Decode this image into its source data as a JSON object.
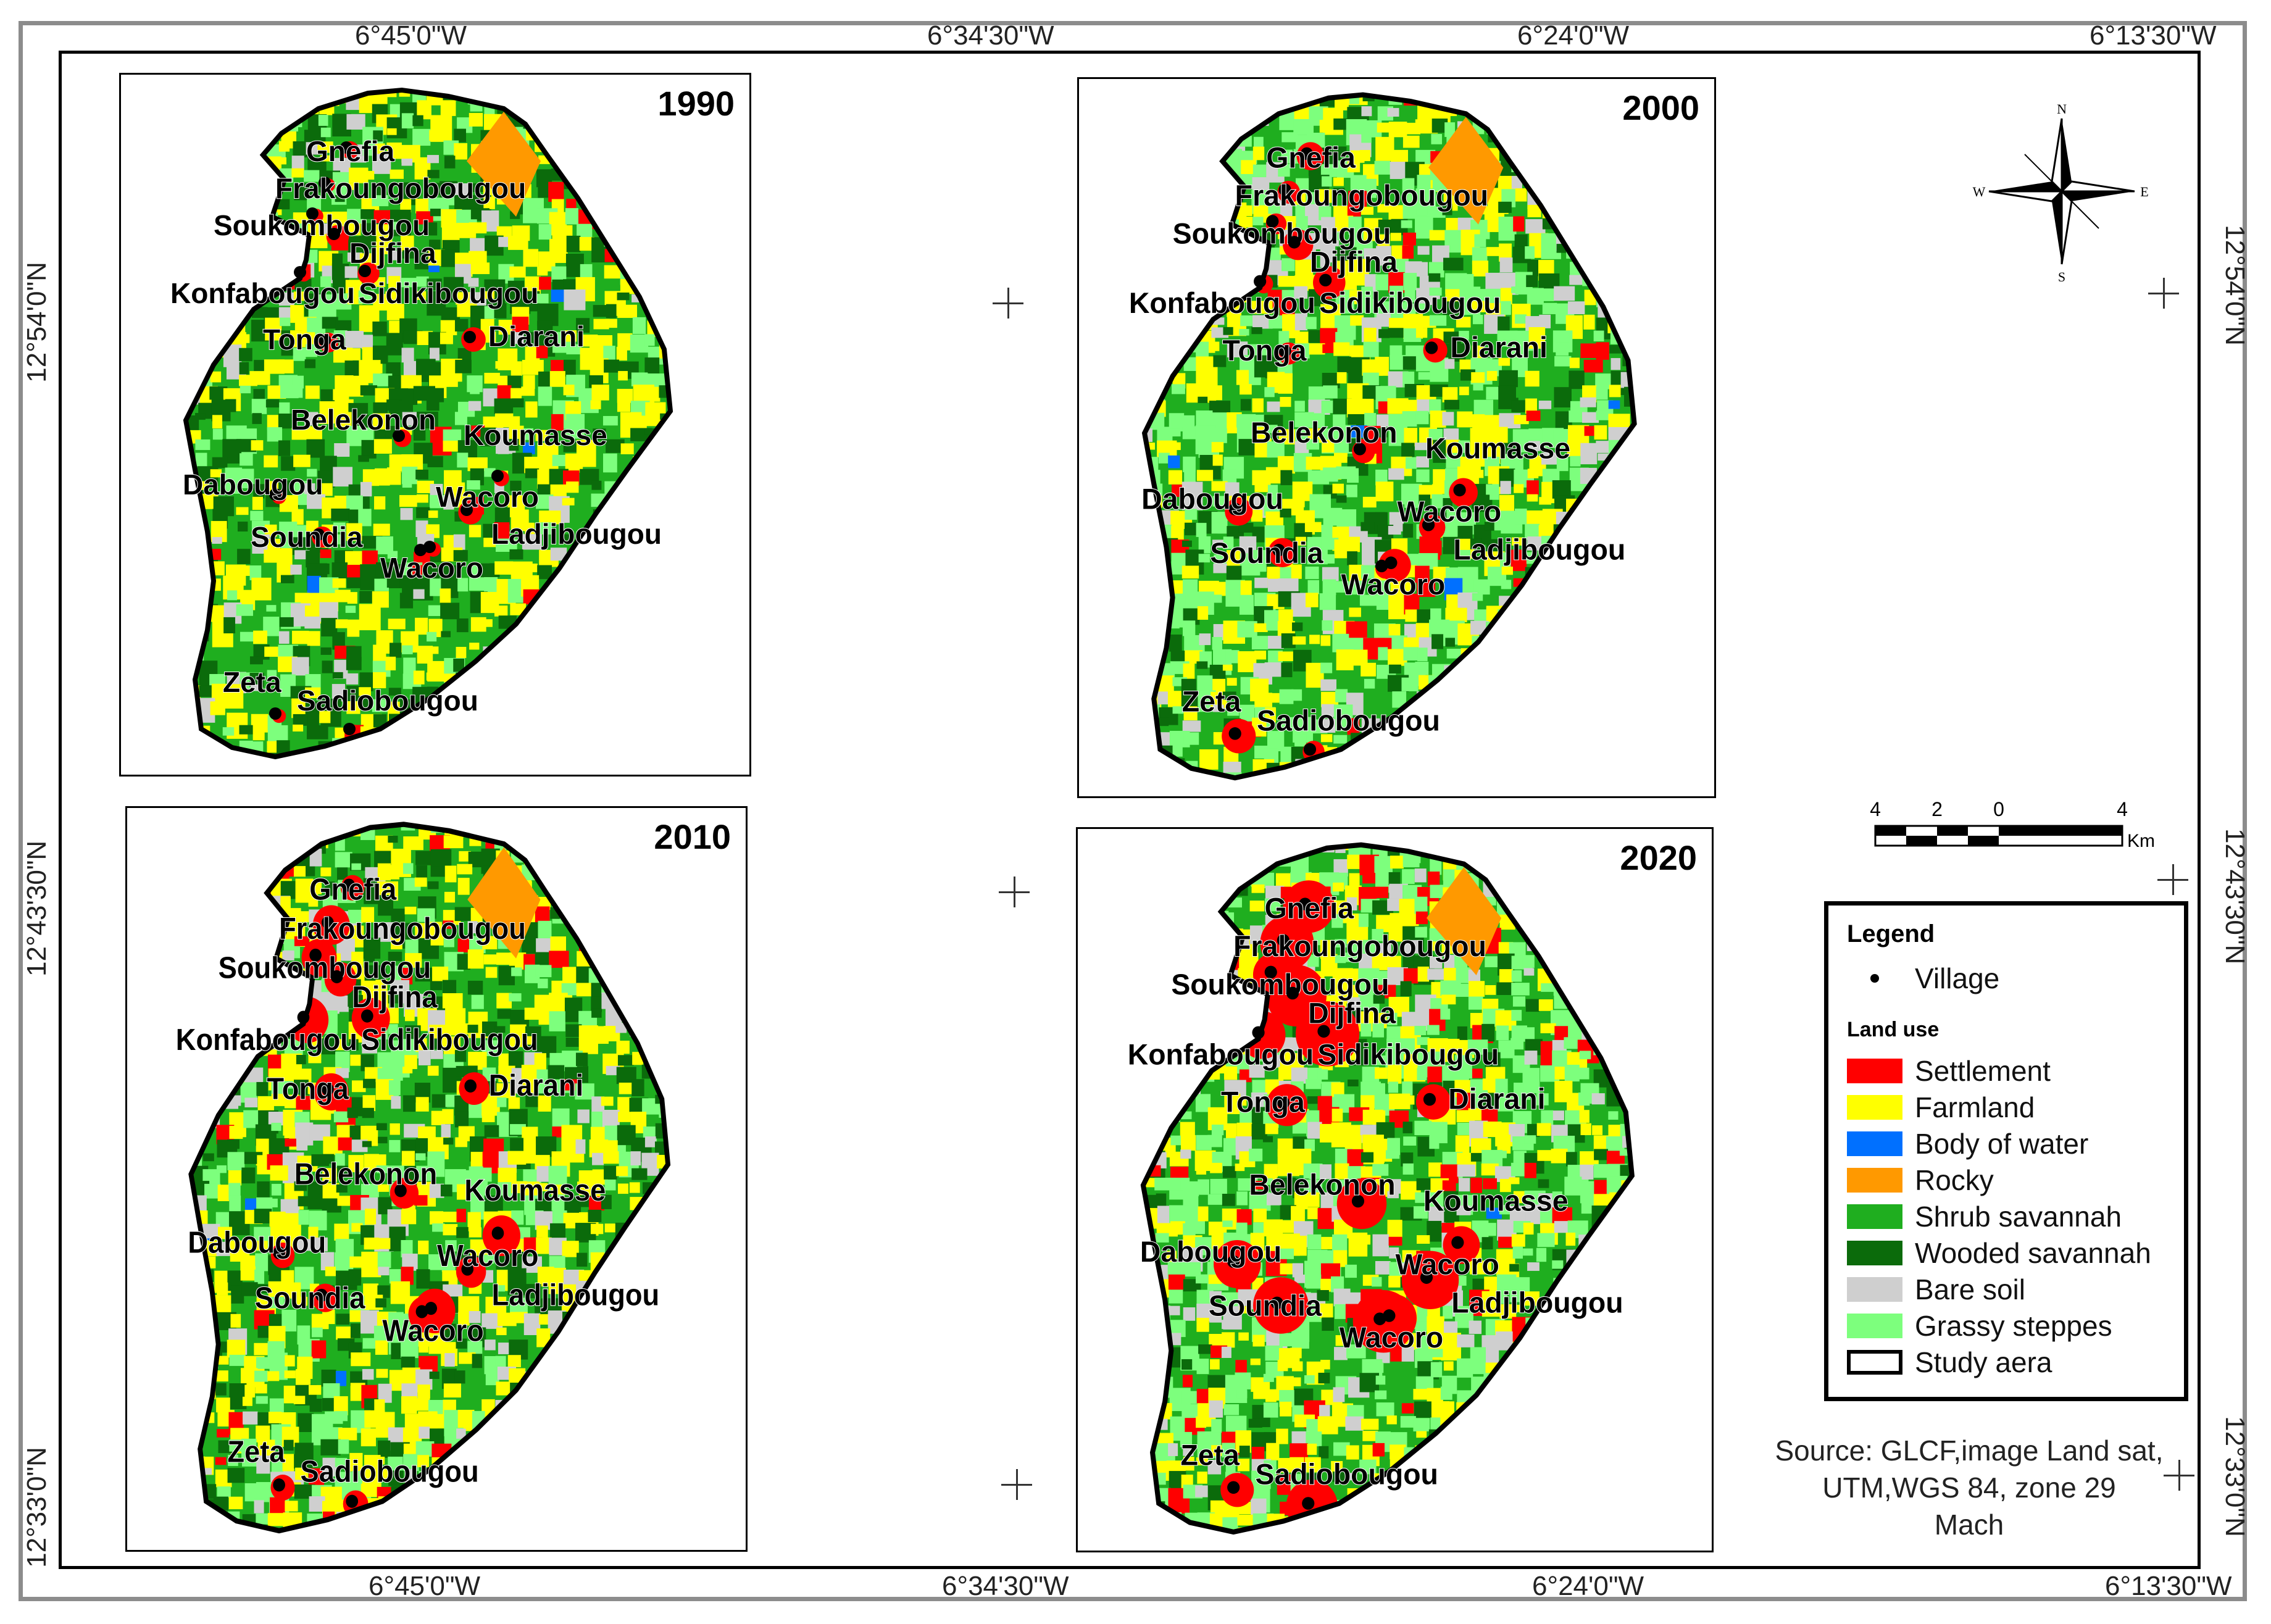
{
  "frame_labels": {
    "top": [
      "6°45'0\"W",
      "6°34'30\"W",
      "6°24'0\"W",
      "6°13'30\"W"
    ],
    "bottom": [
      "6°45'0\"W",
      "6°34'30\"W",
      "6°24'0\"W",
      "6°13'30\"W"
    ],
    "left": [
      "12°54'0\"N",
      "12°43'30\"N",
      "12°33'0\"N"
    ],
    "right": [
      "12°54'0\"N",
      "12°43'30\"N",
      "12°33'0\"N"
    ]
  },
  "panels": [
    {
      "year": "1990"
    },
    {
      "year": "2000"
    },
    {
      "year": "2010"
    },
    {
      "year": "2020"
    }
  ],
  "villages": [
    "Gnefia",
    "Frakoungobougou",
    "Soukombougou",
    "Dijfina",
    "Konfabougou",
    "Sidikibougou",
    "Tonga",
    "Diarani",
    "Belekonon",
    "Koumasse",
    "Dabougou",
    "Wacoro",
    "Soundia",
    "Wacoro",
    "Ladjibougou",
    "Zeta",
    "Sadiobougou"
  ],
  "north_arrow": {
    "n": "N",
    "s": "S",
    "e": "E",
    "w": "W"
  },
  "scale": {
    "ticks": [
      "4",
      "2",
      "0",
      "4"
    ],
    "unit": "Km"
  },
  "legend": {
    "title": "Legend",
    "village_label": "Village",
    "section": "Land use",
    "items": [
      {
        "label": "Settlement",
        "color": "#ff0000"
      },
      {
        "label": "Farmland",
        "color": "#ffff00"
      },
      {
        "label": "Body of water",
        "color": "#0070ff"
      },
      {
        "label": "Rocky",
        "color": "#ff9900"
      },
      {
        "label": "Shrub savannah",
        "color": "#1fae1f"
      },
      {
        "label": "Wooded savannah",
        "color": "#0b6b0b"
      },
      {
        "label": "Bare soil",
        "color": "#cfcfcf"
      },
      {
        "label": "Grassy steppes",
        "color": "#7dff7d"
      },
      {
        "label": "Study aera",
        "color": "#ffffff"
      }
    ]
  },
  "source": {
    "line1": "Source: GLCF,image Land sat,",
    "line2": "UTM,WGS 84, zone 29",
    "line3": "Mach"
  }
}
